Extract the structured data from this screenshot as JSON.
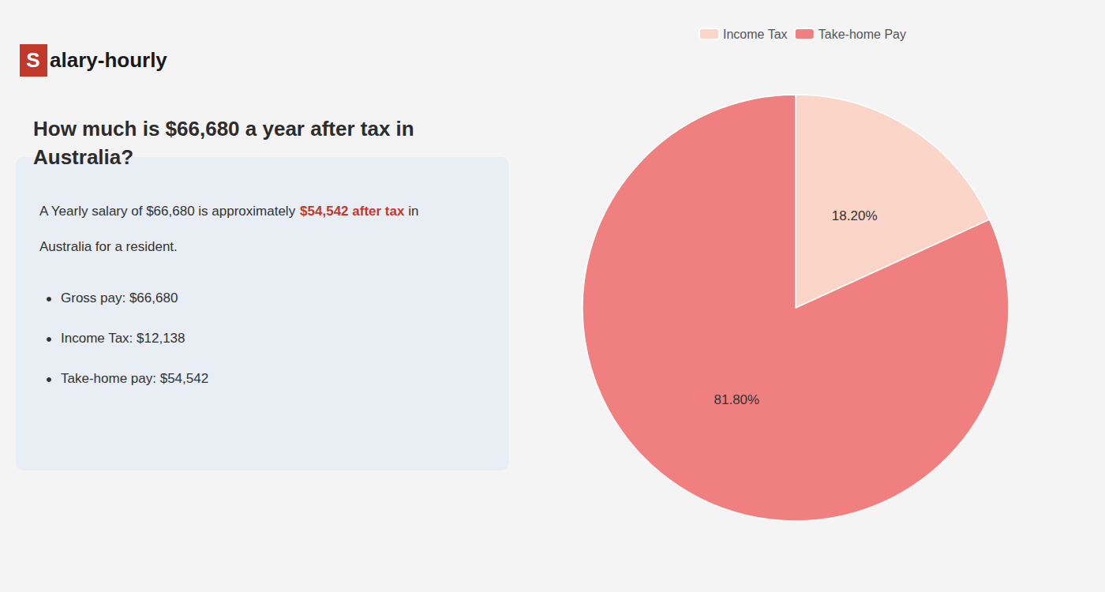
{
  "chart_data": {
    "type": "pie",
    "title": "How much is $66,680 a year after tax in\nAustralia?",
    "categories": [
      "Income Tax",
      "Take-home Pay"
    ],
    "values": [
      18.2,
      81.8
    ],
    "value_labels": [
      "18.20%",
      "81.80%"
    ],
    "colors": [
      "#fad5c8",
      "#f08080"
    ],
    "data_labels": true,
    "legend": "top",
    "annotations": [
      {
        "text": "S",
        "color": "#c0392b"
      },
      {
        "text": "alary-hourly"
      },
      {
        "text": "A Yearly salary of $66,680 is approximately "
      },
      {
        "text": "$54,542 after tax",
        "color": "#c0392b"
      },
      {
        "text": " in"
      },
      {
        "text": "Australia for a resident."
      },
      {
        "text": "Gross pay: $66,680"
      },
      {
        "text": "Income Tax: $12,138"
      },
      {
        "text": "Take-home pay: $54,542"
      }
    ]
  }
}
